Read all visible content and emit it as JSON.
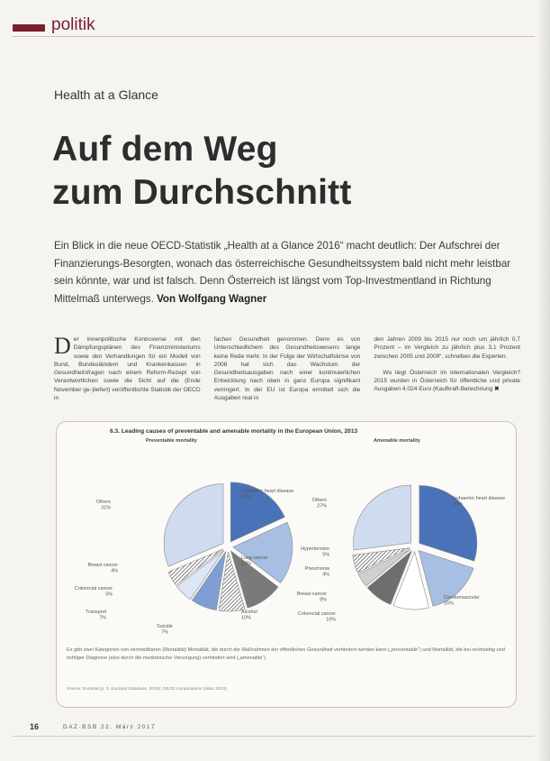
{
  "section": {
    "label": "politik",
    "accent": "#7b1d30"
  },
  "article": {
    "kicker": "Health at a Glance",
    "headline_line1": "Auf dem Weg",
    "headline_line2": "zum Durchschnitt",
    "lead": "Ein Blick in die neue OECD-Statistik „Health at a Glance 2016“ macht deutlich: Der Aufschrei der Finanzierungs-Besorgten, wonach das österreichische Gesundheitssystem bald nicht mehr leistbar sein könnte, war und ist falsch. Denn Österreich ist längst vom Top-Investmentland in Richtung Mittelmaß unterwegs.",
    "author": "Von Wolfgang Wagner",
    "dropcap": "D",
    "col1": "er innenpolitische Kontroverse mit den Dämpfungsplänen des Finanzministeriums sowie den Verhandlungen für ein Modell von Bund, Bundesländern und Krankenkassen in Gesundheitsfragen nach einem Reform-Rezept von Verantwortlichen sowie die Sicht auf die (Ende November ge-)liefert) veröffentlichte Statistik der OECD in",
    "col2": "fachen Gesundheit genommen. Denn es von Unterschiedlichem des Gesundheitswesens lange keine Rede mehr. In der Folge der Wirtschaftskrise von 2008 hat sich das Wachstum der Gesundheitsausgaben nach einer kontinuierlichen Entwicklung nach oben in ganz Europa signifikant verringert. In der EU ist Europa ermittelt sich die Ausgaben real in",
    "col3_p1": "den Jahren 2009 bis 2015 nur noch um jährlich 0,7 Prozent – im Vergleich zu jährlich plus 3,1 Prozent zwischen 2005 und 2009“, schreiben die Experten.",
    "col3_p2": "Wo liegt Österreich im internationalen Vergleich? 2015 wurden in Österreich für öffentliche und private Ausgaben 4.024 Euro (Kaufkraft-Berechnung",
    "end_mark": "✖"
  },
  "figure": {
    "title": "6.3. Leading causes of preventable and amenable mortality in the European Union, 2013",
    "left_subtitle": "Preventable mortality",
    "right_subtitle": "Amenable mortality",
    "note": "Es gibt zwei Kategorien von vermeidbaren (Mortalität) Mortalität, die durch die Maßnahmen der öffentlichen Gesundheit verhindert werden kann („preventable“) und Mortalität, die bei rechtzeitig und richtiger Diagnose (also durch die medizinische Versorgung) verhindert wird („amenable“).",
    "source": "Source: Eurostat (p. 3, Eurostat Database, 2016); OECD computations (data: 2013)."
  },
  "chart_data": [
    {
      "type": "pie",
      "title": "Preventable mortality",
      "slices": [
        {
          "label": "Ischaemic heart disease",
          "value": 18,
          "color": "#4a72b8"
        },
        {
          "label": "Lung cancer",
          "value": 17,
          "color": "#a6bfe2"
        },
        {
          "label": "Alcohol",
          "value": 10,
          "color": "#7a7a7a"
        },
        {
          "label": "Suicide",
          "value": 7,
          "color": "#ffffff",
          "hatch": true
        },
        {
          "label": "Transport",
          "value": 7,
          "color": "#7f9fd4"
        },
        {
          "label": "Colorectal cancer",
          "value": 5,
          "color": "#dde6f4"
        },
        {
          "label": "Breast cancer",
          "value": 4,
          "color": "#5a5a5a",
          "hatch": true
        },
        {
          "label": "Others",
          "value": 31,
          "color": "#cfdbef"
        }
      ],
      "display_labels": [
        "Ischaemic heart disease\n18%",
        "Lung cancer\n17%",
        "Alcohol\n10%",
        "Suicide\n7%",
        "Transport\n7%",
        "Colorectal cancer\n5%",
        "Breast cancer\n4%",
        "Others\n31%"
      ]
    },
    {
      "type": "pie",
      "title": "Amenable mortality",
      "slices": [
        {
          "label": "Ischaemic heart disease",
          "value": 30,
          "color": "#4a72b8"
        },
        {
          "label": "Cerebrovascular diseases",
          "value": 16,
          "color": "#a6bfe2"
        },
        {
          "label": "Colorectal cancer",
          "value": 10,
          "color": "#ffffff"
        },
        {
          "label": "Breast cancer",
          "value": 8,
          "color": "#6e6e6e"
        },
        {
          "label": "Pneumonia",
          "value": 4,
          "color": "#cfcfcf"
        },
        {
          "label": "Hypertension",
          "value": 5,
          "color": "#5a5a5a",
          "hatch": true
        },
        {
          "label": "Others",
          "value": 27,
          "color": "#cfdbef"
        }
      ],
      "display_labels": [
        "Ischaemic heart disease\n30%",
        "Cerebrovascular\n16%",
        "Colorectal cancer\n10%",
        "Breast cancer\n8%",
        "Pneumonia\n4%",
        "Hypertension\n5%",
        "Others\n27%"
      ]
    }
  ],
  "footer": {
    "page_number": "16",
    "magazine": "DAZ·BSB 22. März 2017"
  }
}
